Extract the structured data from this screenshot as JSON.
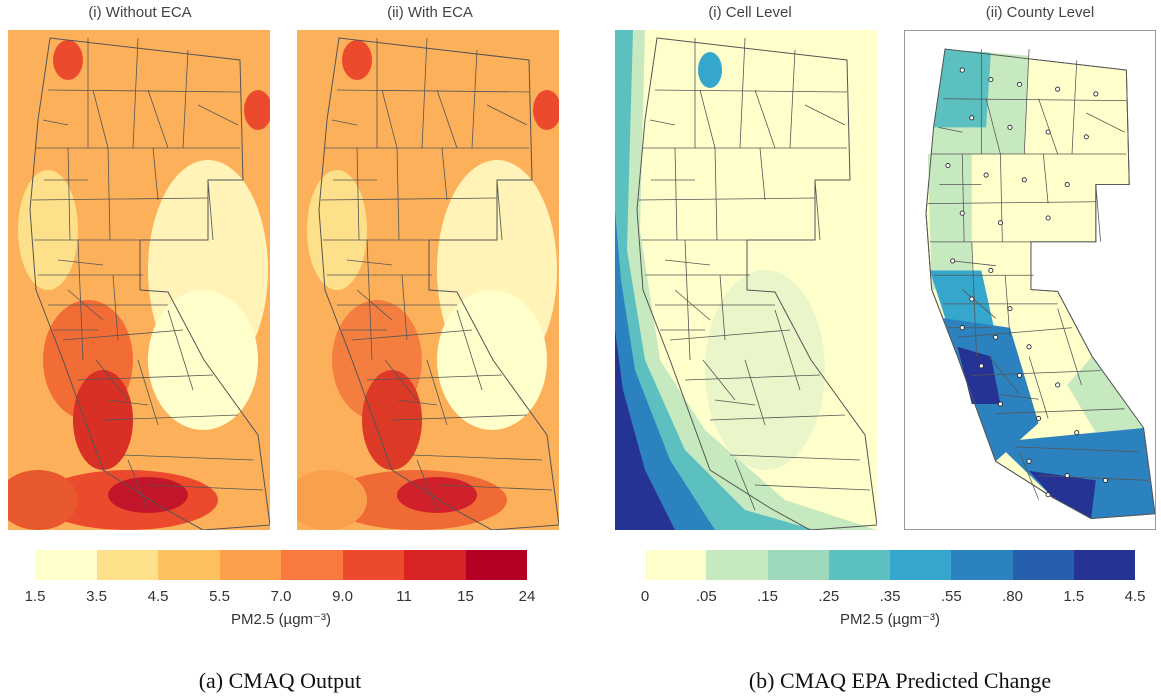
{
  "panels": {
    "a1": {
      "title": "(i) Without ECA"
    },
    "a2": {
      "title": "(ii) With ECA"
    },
    "b1": {
      "title": "(i) Cell Level"
    },
    "b2": {
      "title": "(ii) County Level"
    }
  },
  "legend_a": {
    "colors": [
      "#ffffcc",
      "#fee08b",
      "#fdc05f",
      "#fda04c",
      "#f87a3f",
      "#ec4a2c",
      "#d82424",
      "#b40025"
    ],
    "ticks": [
      "1.5",
      "3.5",
      "4.5",
      "5.5",
      "7.0",
      "9.0",
      "11",
      "15",
      "24"
    ],
    "unit": "PM2.5 (µgm⁻³)"
  },
  "legend_b": {
    "colors": [
      "#ffffcc",
      "#c7e9c0",
      "#9ed9bb",
      "#5dc0c0",
      "#35a7cc",
      "#2c82be",
      "#265fac",
      "#253494"
    ],
    "ticks": [
      "0",
      ".05",
      ".15",
      ".25",
      ".35",
      ".55",
      ".80",
      "1.5",
      "4.5"
    ],
    "unit": "PM2.5 (µgm⁻³)"
  },
  "captions": {
    "a": "(a) CMAQ Output",
    "b": "(b) CMAQ EPA Predicted Change"
  }
}
